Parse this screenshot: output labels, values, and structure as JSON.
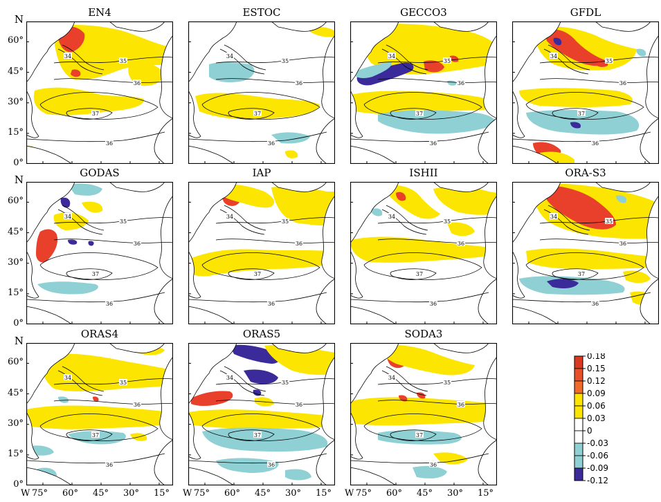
{
  "map": {
    "panels": [
      {
        "title": "EN4",
        "row": 0,
        "col": 0,
        "variant": 0
      },
      {
        "title": "ESTOC",
        "row": 0,
        "col": 1,
        "variant": 1
      },
      {
        "title": "GECCO3",
        "row": 0,
        "col": 2,
        "variant": 2
      },
      {
        "title": "GFDL",
        "row": 0,
        "col": 3,
        "variant": 3
      },
      {
        "title": "GODAS",
        "row": 1,
        "col": 0,
        "variant": 4
      },
      {
        "title": "IAP",
        "row": 1,
        "col": 1,
        "variant": 5
      },
      {
        "title": "ISHII",
        "row": 1,
        "col": 2,
        "variant": 6
      },
      {
        "title": "ORA-S3",
        "row": 1,
        "col": 3,
        "variant": 7
      },
      {
        "title": "ORAS4",
        "row": 2,
        "col": 0,
        "variant": 8
      },
      {
        "title": "ORAS5",
        "row": 2,
        "col": 1,
        "variant": 9
      },
      {
        "title": "SODA3",
        "row": 2,
        "col": 2,
        "variant": 10
      }
    ],
    "lat_labels": [
      {
        "text": "0°",
        "lat": 0
      },
      {
        "text": "15°",
        "lat": 15
      },
      {
        "text": "30°",
        "lat": 30
      },
      {
        "text": "45°",
        "lat": 45
      },
      {
        "text": "60°",
        "lat": 60
      }
    ],
    "north_label": "N",
    "west_label": "W",
    "lon_labels": [
      "75°",
      "60°",
      "45°",
      "30°",
      "15°"
    ],
    "contour_labels": [
      "35",
      "36",
      "37",
      "36",
      "34"
    ]
  },
  "colorbar": {
    "ticks": [
      "0.18",
      "0.15",
      "0.12",
      "0.09",
      "0.06",
      "0.03",
      "0",
      "-0.03",
      "-0.06",
      "-0.09",
      "-0.12"
    ],
    "bands": [
      {
        "color": "#d93a1f",
        "label": "0.18 – 0.15"
      },
      {
        "color": "#e8502a",
        "label": "0.15 – 0.12"
      },
      {
        "color": "#f06a2a",
        "label": "0.12 – 0.09"
      },
      {
        "color": "#fce500",
        "label": "0.09 – 0.06"
      },
      {
        "color": "#fce500",
        "label": "0.06 – 0.03"
      },
      {
        "color": "#ffffff",
        "label": "0.03 – 0"
      },
      {
        "color": "#ffffff",
        "label": "0 – -0.03"
      },
      {
        "color": "#8fd0d4",
        "label": "-0.03 – -0.06"
      },
      {
        "color": "#8fd0d4",
        "label": "-0.06 – -0.09"
      },
      {
        "color": "#3a2a9a",
        "label": "-0.09 – -0.12"
      }
    ]
  },
  "colors": {
    "yellow": "#fce500",
    "red": "#e8402a",
    "cyan": "#8fd0d4",
    "navy": "#3a2a9a"
  }
}
